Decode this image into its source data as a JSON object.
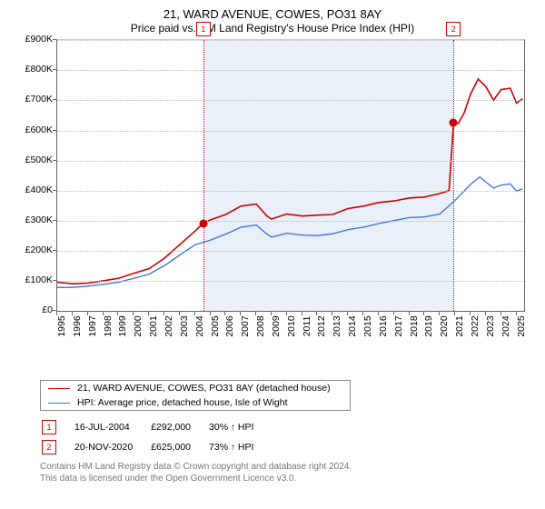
{
  "title_line1": "21, WARD AVENUE, COWES, PO31 8AY",
  "title_line2": "Price paid vs. HM Land Registry's House Price Index (HPI)",
  "chart": {
    "type": "line",
    "x_domain": [
      1995,
      2025.5
    ],
    "y_domain": [
      0,
      900
    ],
    "y_ticks": [
      0,
      100,
      200,
      300,
      400,
      500,
      600,
      700,
      800,
      900
    ],
    "y_tick_labels": [
      "£0",
      "£100K",
      "£200K",
      "£300K",
      "£400K",
      "£500K",
      "£600K",
      "£700K",
      "£800K",
      "£900K"
    ],
    "x_ticks": [
      1995,
      1996,
      1997,
      1998,
      1999,
      2000,
      2001,
      2002,
      2003,
      2004,
      2005,
      2006,
      2007,
      2008,
      2009,
      2010,
      2011,
      2012,
      2013,
      2014,
      2015,
      2016,
      2017,
      2018,
      2019,
      2020,
      2021,
      2022,
      2023,
      2024,
      2025
    ],
    "plot_bg": "#ffffff",
    "grid_color": "#bbbbbb",
    "shade_bands": [
      {
        "from": 2004.54,
        "to": 2020.89,
        "color": "rgba(170,195,230,0.25)"
      }
    ],
    "series": [
      {
        "id": "property",
        "label": "21, WARD AVENUE, COWES, PO31 8AY (detached house)",
        "color": "#cc0000",
        "width": 1.6,
        "points": [
          [
            1995,
            95
          ],
          [
            1996,
            90
          ],
          [
            1997,
            92
          ],
          [
            1998,
            100
          ],
          [
            1999,
            108
          ],
          [
            2000,
            125
          ],
          [
            2001,
            140
          ],
          [
            2002,
            175
          ],
          [
            2003,
            220
          ],
          [
            2004,
            265
          ],
          [
            2004.54,
            292
          ],
          [
            2005,
            302
          ],
          [
            2006,
            320
          ],
          [
            2007,
            348
          ],
          [
            2008,
            355
          ],
          [
            2008.7,
            315
          ],
          [
            2009,
            305
          ],
          [
            2010,
            322
          ],
          [
            2011,
            315
          ],
          [
            2012,
            318
          ],
          [
            2013,
            320
          ],
          [
            2014,
            340
          ],
          [
            2015,
            348
          ],
          [
            2016,
            360
          ],
          [
            2017,
            365
          ],
          [
            2018,
            375
          ],
          [
            2019,
            378
          ],
          [
            2020,
            390
          ],
          [
            2020.6,
            400
          ],
          [
            2020.89,
            625
          ],
          [
            2021.2,
            622
          ],
          [
            2021.6,
            660
          ],
          [
            2022,
            720
          ],
          [
            2022.5,
            770
          ],
          [
            2023,
            745
          ],
          [
            2023.5,
            700
          ],
          [
            2024,
            735
          ],
          [
            2024.6,
            740
          ],
          [
            2025,
            690
          ],
          [
            2025.4,
            705
          ]
        ]
      },
      {
        "id": "hpi",
        "label": "HPI: Average price, detached house, Isle of Wight",
        "color": "#3a6fd8",
        "width": 1.3,
        "points": [
          [
            1995,
            78
          ],
          [
            1996,
            78
          ],
          [
            1997,
            82
          ],
          [
            1998,
            88
          ],
          [
            1999,
            95
          ],
          [
            2000,
            108
          ],
          [
            2001,
            122
          ],
          [
            2002,
            150
          ],
          [
            2003,
            185
          ],
          [
            2004,
            220
          ],
          [
            2005,
            235
          ],
          [
            2006,
            255
          ],
          [
            2007,
            278
          ],
          [
            2008,
            285
          ],
          [
            2008.7,
            255
          ],
          [
            2009,
            245
          ],
          [
            2010,
            258
          ],
          [
            2011,
            252
          ],
          [
            2012,
            250
          ],
          [
            2013,
            256
          ],
          [
            2014,
            270
          ],
          [
            2015,
            278
          ],
          [
            2016,
            290
          ],
          [
            2017,
            300
          ],
          [
            2018,
            310
          ],
          [
            2019,
            312
          ],
          [
            2020,
            322
          ],
          [
            2021,
            368
          ],
          [
            2022,
            420
          ],
          [
            2022.6,
            445
          ],
          [
            2023,
            428
          ],
          [
            2023.5,
            408
          ],
          [
            2024,
            418
          ],
          [
            2024.6,
            422
          ],
          [
            2025,
            398
          ],
          [
            2025.4,
            405
          ]
        ]
      }
    ],
    "sale_markers": [
      {
        "n": "1",
        "x": 2004.54,
        "y": 292,
        "color": "#cc0000"
      },
      {
        "n": "2",
        "x": 2020.89,
        "y": 625,
        "color": "#cc0000"
      }
    ]
  },
  "legend": {
    "rows": [
      {
        "color": "#cc0000",
        "label": "21, WARD AVENUE, COWES, PO31 8AY (detached house)"
      },
      {
        "color": "#3a6fd8",
        "label": "HPI: Average price, detached house, Isle of Wight"
      }
    ]
  },
  "sales": [
    {
      "n": "1",
      "date": "16-JUL-2004",
      "price": "£292,000",
      "pct": "30%",
      "suffix": "HPI"
    },
    {
      "n": "2",
      "date": "20-NOV-2020",
      "price": "£625,000",
      "pct": "73%",
      "suffix": "HPI"
    }
  ],
  "footnote_line1": "Contains HM Land Registry data © Crown copyright and database right 2024.",
  "footnote_line2": "This data is licensed under the Open Government Licence v3.0."
}
